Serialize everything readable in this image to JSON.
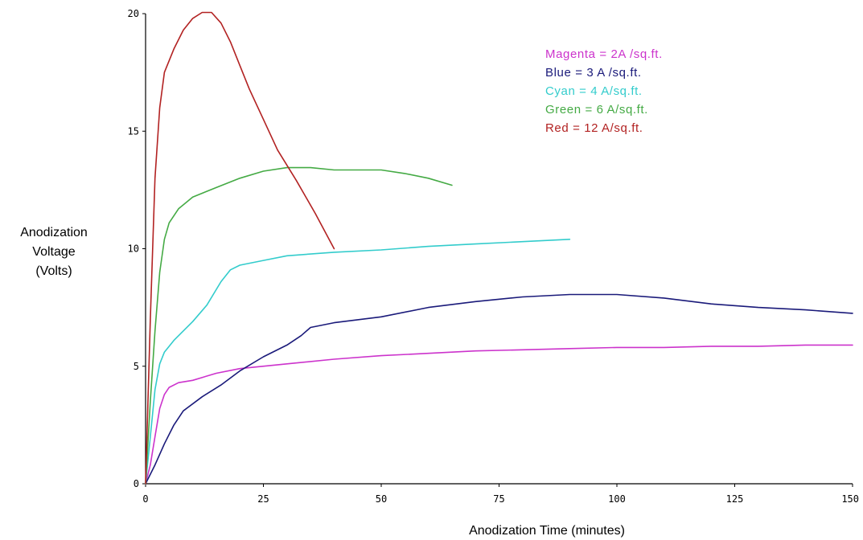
{
  "chart_data": {
    "type": "line",
    "title": "",
    "xlabel": "Anodization Time (minutes)",
    "ylabel": [
      "Anodization",
      "Voltage",
      "(Volts)"
    ],
    "xlim": [
      0,
      150
    ],
    "ylim": [
      0,
      20
    ],
    "x_ticks": [
      {
        "value": 0,
        "label": "0"
      },
      {
        "value": 25,
        "label": "25"
      },
      {
        "value": 50,
        "label": "50"
      },
      {
        "value": 75,
        "label": "75"
      },
      {
        "value": 100,
        "label": "100"
      },
      {
        "value": 125,
        "label": "125"
      },
      {
        "value": 150,
        "label": "150"
      }
    ],
    "y_ticks": [
      {
        "value": 0,
        "label": "0"
      },
      {
        "value": 5,
        "label": "5"
      },
      {
        "value": 10,
        "label": "10"
      },
      {
        "value": 15,
        "label": "15"
      },
      {
        "value": 20,
        "label": "20"
      }
    ],
    "grid": false,
    "legend_position": "top-right",
    "series": [
      {
        "legend": "Magenta = 2A /sq.ft.",
        "color": "#cc33cc",
        "points": [
          [
            0,
            0
          ],
          [
            1,
            0.8
          ],
          [
            2,
            2
          ],
          [
            3,
            3.2
          ],
          [
            4,
            3.8
          ],
          [
            5,
            4.1
          ],
          [
            7,
            4.3
          ],
          [
            10,
            4.4
          ],
          [
            15,
            4.7
          ],
          [
            20,
            4.9
          ],
          [
            30,
            5.1
          ],
          [
            40,
            5.3
          ],
          [
            50,
            5.45
          ],
          [
            60,
            5.55
          ],
          [
            70,
            5.65
          ],
          [
            80,
            5.7
          ],
          [
            90,
            5.75
          ],
          [
            100,
            5.8
          ],
          [
            110,
            5.8
          ],
          [
            120,
            5.85
          ],
          [
            130,
            5.85
          ],
          [
            140,
            5.9
          ],
          [
            150,
            5.9
          ]
        ]
      },
      {
        "legend": "Blue = 3 A /sq.ft.",
        "color": "#1a1a7a",
        "points": [
          [
            0,
            0
          ],
          [
            2,
            0.8
          ],
          [
            4,
            1.7
          ],
          [
            6,
            2.5
          ],
          [
            8,
            3.1
          ],
          [
            12,
            3.7
          ],
          [
            16,
            4.2
          ],
          [
            20,
            4.8
          ],
          [
            25,
            5.4
          ],
          [
            30,
            5.9
          ],
          [
            33,
            6.3
          ],
          [
            35,
            6.65
          ],
          [
            40,
            6.85
          ],
          [
            50,
            7.1
          ],
          [
            60,
            7.5
          ],
          [
            70,
            7.75
          ],
          [
            80,
            7.95
          ],
          [
            90,
            8.05
          ],
          [
            100,
            8.05
          ],
          [
            110,
            7.9
          ],
          [
            120,
            7.65
          ],
          [
            130,
            7.5
          ],
          [
            140,
            7.4
          ],
          [
            150,
            7.25
          ]
        ]
      },
      {
        "legend": "Cyan = 4 A/sq.ft.",
        "color": "#33cccc",
        "points": [
          [
            0,
            0
          ],
          [
            1,
            2
          ],
          [
            2,
            4
          ],
          [
            3,
            5.1
          ],
          [
            4,
            5.6
          ],
          [
            6,
            6.1
          ],
          [
            10,
            6.9
          ],
          [
            13,
            7.6
          ],
          [
            16,
            8.6
          ],
          [
            18,
            9.1
          ],
          [
            20,
            9.3
          ],
          [
            25,
            9.5
          ],
          [
            30,
            9.7
          ],
          [
            40,
            9.85
          ],
          [
            50,
            9.95
          ],
          [
            60,
            10.1
          ],
          [
            70,
            10.2
          ],
          [
            80,
            10.3
          ],
          [
            90,
            10.4
          ]
        ]
      },
      {
        "legend": "Green = 6 A/sq.ft.",
        "color": "#44aa44",
        "points": [
          [
            0,
            0
          ],
          [
            1,
            3.5
          ],
          [
            2,
            6.5
          ],
          [
            3,
            9
          ],
          [
            4,
            10.4
          ],
          [
            5,
            11.1
          ],
          [
            7,
            11.7
          ],
          [
            10,
            12.2
          ],
          [
            15,
            12.6
          ],
          [
            20,
            13
          ],
          [
            25,
            13.3
          ],
          [
            30,
            13.45
          ],
          [
            35,
            13.45
          ],
          [
            40,
            13.35
          ],
          [
            45,
            13.35
          ],
          [
            50,
            13.35
          ],
          [
            55,
            13.2
          ],
          [
            60,
            13
          ],
          [
            65,
            12.7
          ]
        ]
      },
      {
        "legend": "Red = 12 A/sq.ft.",
        "color": "#b22222",
        "points": [
          [
            0,
            0
          ],
          [
            1,
            7
          ],
          [
            2,
            13
          ],
          [
            3,
            16
          ],
          [
            4,
            17.5
          ],
          [
            6,
            18.5
          ],
          [
            8,
            19.3
          ],
          [
            10,
            19.8
          ],
          [
            12,
            20.05
          ],
          [
            14,
            20.05
          ],
          [
            16,
            19.6
          ],
          [
            18,
            18.8
          ],
          [
            20,
            17.8
          ],
          [
            22,
            16.8
          ],
          [
            25,
            15.5
          ],
          [
            28,
            14.2
          ],
          [
            32,
            12.9
          ],
          [
            36,
            11.5
          ],
          [
            40,
            10
          ]
        ]
      }
    ]
  }
}
